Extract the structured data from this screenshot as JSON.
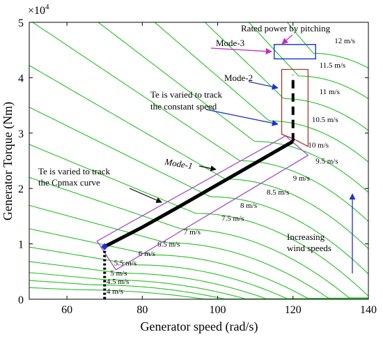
{
  "chart_data": {
    "type": "line",
    "xlabel": "Generator speed (rad/s)",
    "ylabel": "Generator Torque (Nm)",
    "xlim": [
      50,
      140
    ],
    "ylim": [
      0,
      50000
    ],
    "x_ticks": [
      "60",
      "80",
      "100",
      "120",
      "140"
    ],
    "y_ticks": [
      "0",
      "1",
      "2",
      "3",
      "4",
      "5"
    ],
    "y_multiplier": "×10",
    "y_multiplier_exp": "4",
    "grid": false,
    "colors": {
      "wind_curves": "#22c022",
      "operating_path": "#000000",
      "mode1_box": "#a84cc8",
      "mode2_box": "#a03a2a",
      "mode3_box": "#1f3fd0",
      "blue_arrow": "#2030d0",
      "magenta_arrow": "#c030c0"
    },
    "wind_speed_labels": [
      {
        "text": "4 m/s",
        "x": 70.5,
        "y": 1000
      },
      {
        "text": "4.5 m/s",
        "x": 70.5,
        "y": 2800
      },
      {
        "text": "5 m/s",
        "x": 71.5,
        "y": 4300
      },
      {
        "text": "5.5 m/s",
        "x": 72.5,
        "y": 6100
      },
      {
        "text": "6 m/s",
        "x": 79,
        "y": 7800
      },
      {
        "text": "6.5 m/s",
        "x": 84,
        "y": 9500
      },
      {
        "text": "7 m/s",
        "x": 91,
        "y": 11700
      },
      {
        "text": "7.5 m/s",
        "x": 101,
        "y": 14200
      },
      {
        "text": "8 m/s",
        "x": 106,
        "y": 16500
      },
      {
        "text": "8.5 m/s",
        "x": 113,
        "y": 18900
      },
      {
        "text": "9 m/s",
        "x": 120,
        "y": 21400
      },
      {
        "text": "9.5 m/s",
        "x": 126,
        "y": 24500
      },
      {
        "text": "10 m/s",
        "x": 124,
        "y": 27400
      },
      {
        "text": "10.5 m/s",
        "x": 125,
        "y": 32000
      },
      {
        "text": "11 m/s",
        "x": 127,
        "y": 37000
      },
      {
        "text": "11.5 m/s",
        "x": 127,
        "y": 41800
      },
      {
        "text": "12 m/s",
        "x": 131,
        "y": 46200
      }
    ],
    "wind_curves_peak_torque": [
      1700,
      2600,
      3500,
      4700,
      6200,
      8000,
      10200,
      12700,
      15500,
      18500,
      21700,
      25000,
      28500,
      32200,
      36200,
      40300,
      44400
    ],
    "operating_path": {
      "x": [
        70,
        80,
        90,
        100,
        110,
        120
      ],
      "y": [
        9500,
        13000,
        16800,
        20700,
        24600,
        28500
      ]
    },
    "annotations": {
      "rated_power": "Rated power by pitching",
      "mode3": "Mode-3",
      "mode2": "Mode-2",
      "mode1": "Mode-1",
      "te_speed_1": "Te is varied to track",
      "te_speed_2": "the constant speed",
      "te_cp_1": "Te is varied to track",
      "te_cp_2": "the Cpmax curve",
      "increasing_1": "Increasing",
      "increasing_2": "wind speeds"
    }
  }
}
